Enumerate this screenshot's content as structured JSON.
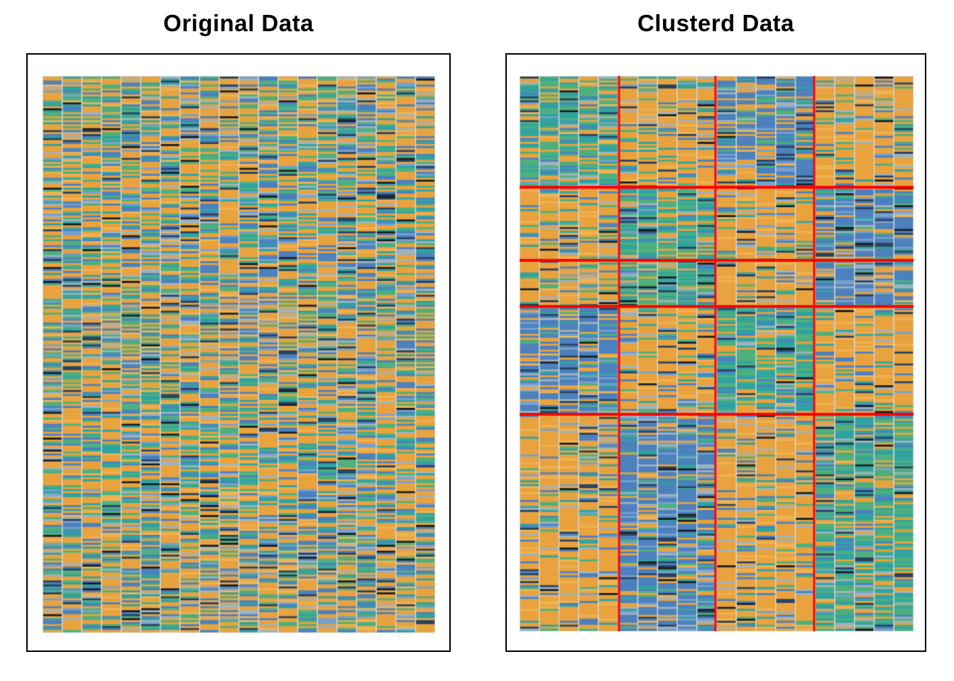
{
  "figure": {
    "background": "#ffffff",
    "panel_border_color": "#000000",
    "column_gap_color": "#d2d7d9"
  },
  "chart_data": [
    {
      "type": "heatmap",
      "title": "Original Data",
      "rows": 280,
      "cols": 20,
      "seed": 20140605,
      "clustered": false,
      "palette": {
        "orange": "#E9A23C",
        "amber": "#F0B250",
        "blue": "#4B80BD",
        "skyblue": "#76A0CC",
        "teal": "#2FA2A0",
        "green": "#4DAF7C",
        "gray": "#9FB2BD",
        "navy": "#27425F",
        "black": "#161D22"
      },
      "base_weights": {
        "orange": 0.4,
        "amber": 0.06,
        "blue": 0.15,
        "skyblue": 0.04,
        "teal": 0.11,
        "green": 0.13,
        "gray": 0.05,
        "navy": 0.04,
        "black": 0.02
      },
      "clusters": null
    },
    {
      "type": "heatmap",
      "title": "Clusterd Data",
      "rows": 280,
      "cols": 20,
      "seed": 987654321,
      "clustered": true,
      "palette": {
        "orange": "#E9A23C",
        "amber": "#F0B250",
        "blue": "#4B80BD",
        "skyblue": "#76A0CC",
        "teal": "#2FA2A0",
        "green": "#4DAF7C",
        "gray": "#9FB2BD",
        "navy": "#27425F",
        "black": "#161D22"
      },
      "base_weights": {
        "orange": 0.4,
        "amber": 0.06,
        "blue": 0.15,
        "skyblue": 0.04,
        "teal": 0.11,
        "green": 0.13,
        "gray": 0.05,
        "navy": 0.04,
        "black": 0.02
      },
      "clusters": {
        "line_color": "#FF0000",
        "vline_width": 3,
        "hline_width": 4,
        "col_breaks_frac": [
          0.252,
          0.497,
          0.748
        ],
        "row_breaks_frac": [
          0.201,
          0.332,
          0.415,
          0.609
        ],
        "block_dominant": [
          [
            "green",
            "orange",
            "blue",
            "orange"
          ],
          [
            "orange",
            "green",
            "orange",
            "blue"
          ],
          [
            "orange",
            "green",
            "orange",
            "blue"
          ],
          [
            "blue",
            "orange",
            "green",
            "orange"
          ],
          [
            "orange",
            "blue",
            "orange",
            "green"
          ]
        ],
        "dominant_boosts": {
          "orange": {
            "orange": 2.0,
            "amber": 1.6,
            "blue": 0.5,
            "skyblue": 0.5,
            "teal": 0.55,
            "green": 0.55
          },
          "blue": {
            "blue": 3.2,
            "skyblue": 2.4,
            "navy": 1.6,
            "orange": 0.42,
            "amber": 0.4,
            "teal": 0.6,
            "green": 0.5
          },
          "green": {
            "green": 2.8,
            "teal": 2.6,
            "orange": 0.5,
            "amber": 0.5,
            "blue": 0.55,
            "skyblue": 0.6
          }
        }
      }
    }
  ]
}
